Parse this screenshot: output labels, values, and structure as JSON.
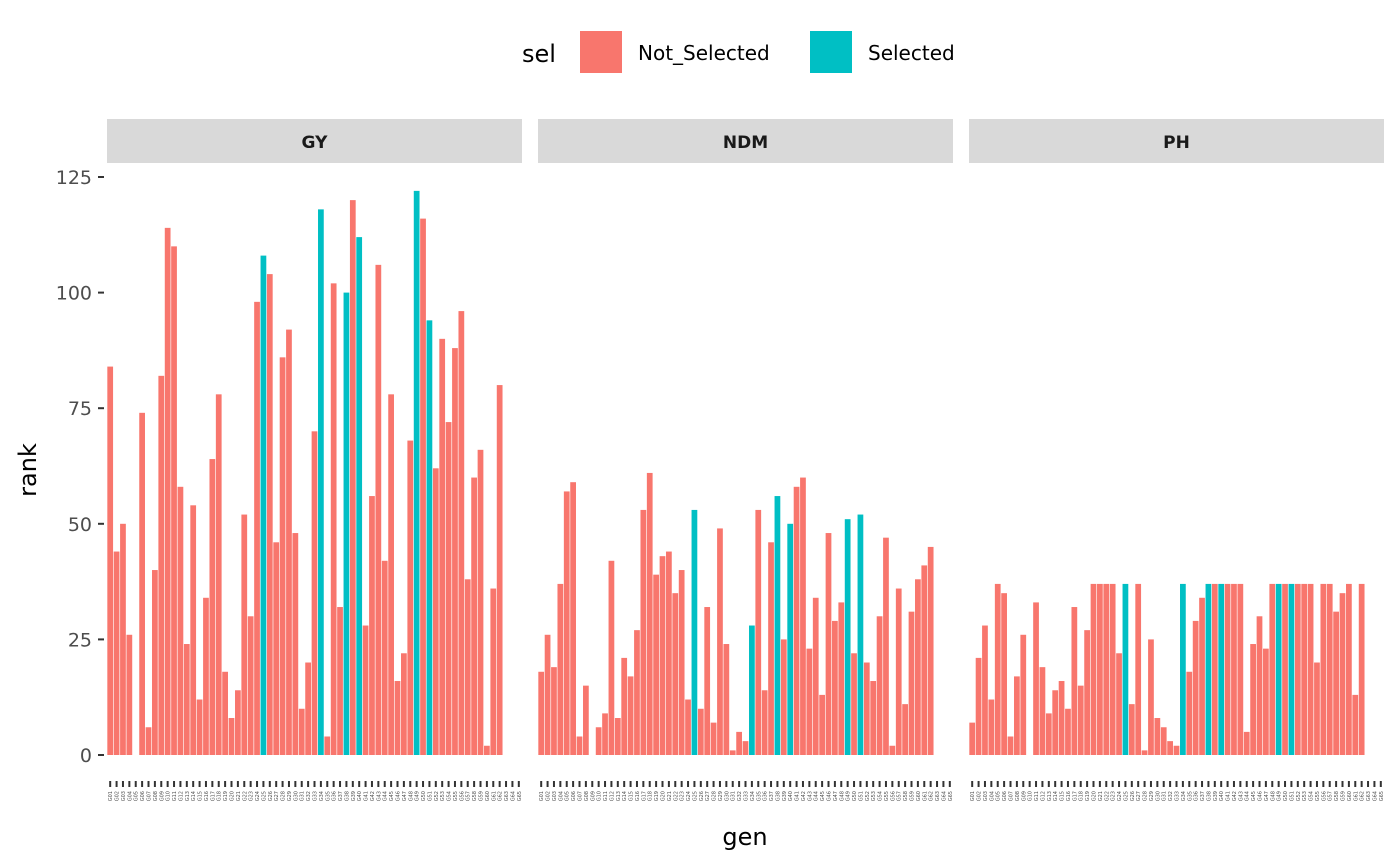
{
  "chart_data": {
    "type": "bar",
    "title": "",
    "xlabel": "gen",
    "ylabel": "rank",
    "ylim": [
      0,
      125
    ],
    "yticks": [
      0,
      25,
      50,
      75,
      100,
      125
    ],
    "grid": false,
    "legend": {
      "title": "sel",
      "placement": "top",
      "entries": [
        {
          "name": "Not_Selected",
          "color": "#F8766D"
        },
        {
          "name": "Selected",
          "color": "#00BFC4"
        }
      ]
    },
    "categories": [
      "G01",
      "G02",
      "G03",
      "G04",
      "G05",
      "G06",
      "G07",
      "G08",
      "G09",
      "G10",
      "G11",
      "G12",
      "G13",
      "G14",
      "G15",
      "G16",
      "G17",
      "G18",
      "G19",
      "G20",
      "G21",
      "G22",
      "G23",
      "G24",
      "G25",
      "G26",
      "G27",
      "G28",
      "G29",
      "G30",
      "G31",
      "G32",
      "G33",
      "G34",
      "G35",
      "G36",
      "G37",
      "G38",
      "G39",
      "G40",
      "G41",
      "G42",
      "G43",
      "G44",
      "G45",
      "G46",
      "G47",
      "G48",
      "G49",
      "G50",
      "G51",
      "G52",
      "G53",
      "G54",
      "G55",
      "G56",
      "G57",
      "G58",
      "G59",
      "G60",
      "G61",
      "G62",
      "G63",
      "G64",
      "G65"
    ],
    "panels": [
      {
        "name": "GY",
        "values": [
          84,
          44,
          50,
          26,
          null,
          74,
          6,
          40,
          82,
          114,
          110,
          58,
          24,
          54,
          12,
          34,
          64,
          78,
          18,
          8,
          14,
          52,
          30,
          98,
          108,
          104,
          46,
          86,
          92,
          48,
          10,
          20,
          70,
          118,
          4,
          102,
          32,
          100,
          120,
          112,
          28,
          56,
          106,
          42,
          78,
          16,
          22,
          68,
          122,
          116,
          94,
          62,
          90,
          72,
          88,
          96,
          38,
          60,
          66,
          2,
          36,
          80,
          null,
          null,
          null
        ],
        "selected": [
          "G25",
          "G34",
          "G38",
          "G40",
          "G49",
          "G51"
        ]
      },
      {
        "name": "NDM",
        "values": [
          18,
          26,
          19,
          37,
          57,
          59,
          4,
          15,
          null,
          6,
          9,
          42,
          8,
          21,
          17,
          27,
          53,
          61,
          39,
          43,
          44,
          35,
          40,
          12,
          53,
          10,
          32,
          7,
          49,
          24,
          1,
          5,
          3,
          28,
          53,
          14,
          46,
          56,
          25,
          50,
          58,
          60,
          23,
          34,
          13,
          48,
          29,
          33,
          51,
          22,
          52,
          20,
          16,
          30,
          47,
          2,
          36,
          11,
          31,
          38,
          41,
          45,
          null,
          null,
          null
        ],
        "selected": [
          "G25",
          "G34",
          "G38",
          "G40",
          "G49",
          "G51"
        ]
      },
      {
        "name": "PH",
        "values": [
          7,
          21,
          28,
          12,
          37,
          35,
          4,
          17,
          26,
          null,
          33,
          19,
          9,
          14,
          16,
          10,
          32,
          15,
          27,
          37,
          37,
          37,
          37,
          22,
          37,
          11,
          37,
          1,
          25,
          8,
          6,
          3,
          2,
          37,
          18,
          29,
          34,
          37,
          37,
          37,
          37,
          37,
          37,
          5,
          24,
          30,
          23,
          37,
          37,
          37,
          37,
          37,
          37,
          37,
          20,
          37,
          37,
          31,
          35,
          37,
          13,
          37,
          null,
          null,
          null
        ],
        "selected": [
          "G25",
          "G34",
          "G38",
          "G40",
          "G49",
          "G51"
        ]
      }
    ]
  }
}
